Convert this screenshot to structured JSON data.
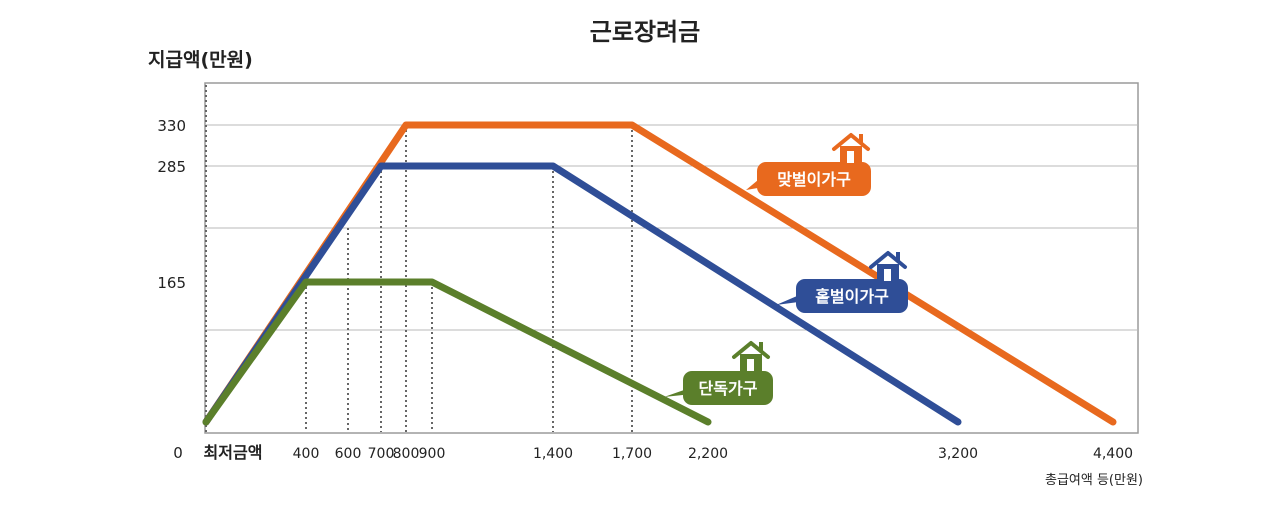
{
  "chart_data": {
    "type": "line",
    "title": "근로장려금",
    "ylabel": "지급액(만원)",
    "xlabel": "총급여액 등(만원)",
    "x_origin_label": "0",
    "x_min_label": "최저금액",
    "x_ticks": [
      400,
      600,
      700,
      800,
      900,
      1400,
      1700,
      2200,
      3200,
      4400
    ],
    "x_tick_labels": [
      "400",
      "600",
      "700",
      "800",
      "900",
      "1,400",
      "1,700",
      "2,200",
      "3,200",
      "4,400"
    ],
    "y_ticks": [
      165,
      285,
      330
    ],
    "y_tick_labels": [
      "165",
      "285",
      "330"
    ],
    "series": [
      {
        "name": "맞벌이가구",
        "color": "#e8691e",
        "points": [
          [
            0,
            0
          ],
          [
            800,
            330
          ],
          [
            1700,
            330
          ],
          [
            4400,
            0
          ]
        ]
      },
      {
        "name": "홑벌이가구",
        "color": "#2f4e97",
        "points": [
          [
            0,
            0
          ],
          [
            700,
            285
          ],
          [
            1400,
            285
          ],
          [
            3200,
            0
          ]
        ]
      },
      {
        "name": "단독가구",
        "color": "#5b7f2b",
        "points": [
          [
            0,
            0
          ],
          [
            400,
            165
          ],
          [
            900,
            165
          ],
          [
            2200,
            0
          ]
        ]
      }
    ],
    "grid": true,
    "legend": "inline-labels"
  }
}
